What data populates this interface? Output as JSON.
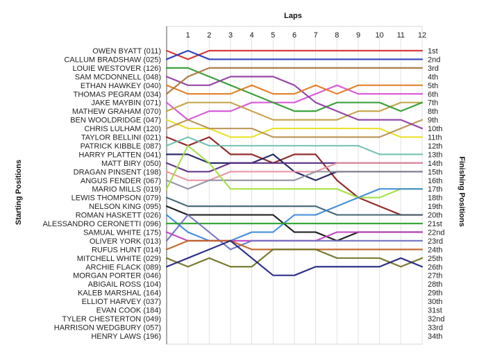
{
  "chart_data": {
    "type": "line",
    "title": "",
    "xlabel": "Laps",
    "ylabel_left": "Starting Positions",
    "ylabel_right": "Finishing Positions",
    "laps": [
      0,
      1,
      2,
      3,
      4,
      5,
      6,
      7,
      8,
      9,
      10,
      11,
      12
    ],
    "lap_tick_labels": [
      "1",
      "2",
      "3",
      "4",
      "5",
      "6",
      "7",
      "8",
      "9",
      "10",
      "11",
      "12"
    ],
    "position_range": [
      1,
      34
    ],
    "grid": true,
    "finishing_labels": [
      "1st",
      "2nd",
      "3rd",
      "4th",
      "5th",
      "6th",
      "7th",
      "8th",
      "9th",
      "10th",
      "11th",
      "12th",
      "13th",
      "14th",
      "15th",
      "16th",
      "17th",
      "18th",
      "19th",
      "20th",
      "21st",
      "22nd",
      "23rd",
      "24th",
      "25th",
      "26th",
      "27th",
      "28th",
      "29th",
      "30th",
      "31st",
      "32nd",
      "33rd",
      "34th"
    ],
    "series": [
      {
        "name": "OWEN BYATT (011)",
        "color": "#d42a2a",
        "positions": [
          1,
          2,
          1,
          1,
          1,
          1,
          1,
          1,
          1,
          1,
          1,
          1,
          1
        ]
      },
      {
        "name": "CALLUM BRADSHAW (025)",
        "color": "#2233bb",
        "positions": [
          2,
          1,
          2,
          2,
          2,
          2,
          2,
          2,
          2,
          2,
          2,
          2,
          2
        ]
      },
      {
        "name": "LOUIE WESTOVER (126)",
        "color": "#2e9a2e",
        "positions": [
          3,
          3,
          4,
          5,
          6,
          7,
          8,
          8,
          7,
          7,
          7,
          8,
          7
        ]
      },
      {
        "name": "SAM MCDONNELL (048)",
        "color": "#8e3a9e",
        "positions": [
          4,
          5,
          5,
          4,
          4,
          4,
          5,
          7,
          8,
          9,
          9,
          9,
          10
        ]
      },
      {
        "name": "ETHAN HAWKEY (040)",
        "color": "#e07a20",
        "positions": [
          5,
          6,
          6,
          6,
          5,
          6,
          6,
          5,
          6,
          5,
          5,
          5,
          5
        ]
      },
      {
        "name": "THOMAS PEGRAM (034)",
        "color": "#a6733a",
        "positions": [
          6,
          4,
          3,
          3,
          3,
          3,
          3,
          3,
          3,
          3,
          3,
          3,
          3
        ]
      }
    ],
    "starting_order": [
      "OWEN BYATT (011)",
      "CALLUM BRADSHAW (025)",
      "LOUIE WESTOVER (126)",
      "SAM MCDONNELL (048)",
      "ETHAN HAWKEY (040)",
      "THOMAS PEGRAM (034)",
      "JAKE MAYBIN (071)",
      "MATHEW GRAHAM (070)",
      "BEN WOOLDRIDGE (047)",
      "CHRIS LULHAM (120)",
      "TAYLOR BELLINI (021)",
      "PATRICK KIBBLE (087)",
      "HARRY PLATTEN (041)",
      "MATT BIRY (050)",
      "DRAGAN PINSENT (198)",
      "ANGUS FENDER (067)",
      "MARIO MILLS (019)",
      "LEWIS THOMPSON (079)",
      "NELSON KING (095)",
      "ROMAN HASKETT (026)",
      "ALESSANDRO CERONETTI (096)",
      "SAMUAL WHITE (175)",
      "OLIVER YORK (013)",
      "RUFUS HUNT (014)",
      "MITCHELL WHITE (029)",
      "ARCHIE FLACK (089)",
      "MORGAN PORTER (046)",
      "ABIGAIL ROSS (104)",
      "KALEB MARSHAL (164)",
      "ELLIOT HARVEY (037)",
      "EVAN COOK (184)",
      "TYLER CHESTERTON (049)",
      "HARRISON WEDGBURY (057)",
      "HENRY LAWS (196)"
    ],
    "other_series": [
      {
        "name": "JAKE MAYBIN (071)",
        "color": "#d64fd6",
        "positions": [
          7,
          9,
          8,
          8,
          7,
          7,
          7,
          6,
          5,
          6,
          6,
          6,
          6
        ]
      },
      {
        "name": "MATHEW GRAHAM (070)",
        "color": "#c2a040",
        "positions": [
          8,
          7,
          7,
          7,
          8,
          9,
          9,
          9,
          9,
          8,
          8,
          7,
          7
        ]
      },
      {
        "name": "BEN WOOLDRIDGE (047)",
        "color": "#e8e020",
        "positions": [
          9,
          10,
          10,
          11,
          11,
          10,
          10,
          10,
          10,
          10,
          10,
          11,
          11
        ]
      },
      {
        "name": "CHRIS LULHAM (120)",
        "color": "#b89050",
        "positions": [
          10,
          9,
          10,
          10,
          10,
          11,
          11,
          11,
          11,
          11,
          11,
          10,
          9
        ]
      },
      {
        "name": "TAYLOR BELLINI (021)",
        "color": "#8a1a1a",
        "positions": [
          11,
          12,
          11,
          13,
          13,
          14,
          13,
          13,
          16,
          18,
          19,
          20,
          20
        ]
      },
      {
        "name": "PATRICK KIBBLE (087)",
        "color": "#70c0b0",
        "positions": [
          12,
          11,
          12,
          12,
          12,
          12,
          12,
          12,
          12,
          12,
          13,
          13,
          13
        ]
      },
      {
        "name": "HARRY PLATTEN (041)",
        "color": "#1a1a60",
        "positions": [
          13,
          13,
          14,
          14,
          14,
          13,
          15,
          16,
          15,
          15,
          15,
          15,
          15
        ]
      },
      {
        "name": "MATT BIRY (050)",
        "color": "#5a2a80",
        "positions": [
          14,
          15,
          15,
          14,
          14,
          14,
          14,
          14,
          14,
          14,
          14,
          14,
          14
        ]
      },
      {
        "name": "DRAGAN PINSENT (198)",
        "color": "#e890a0",
        "positions": [
          15,
          16,
          16,
          15,
          15,
          15,
          15,
          15,
          14,
          14,
          14,
          14,
          14
        ]
      },
      {
        "name": "ANGUS FENDER (067)",
        "color": "#9090a0",
        "positions": [
          16,
          17,
          16,
          16,
          16,
          16,
          16,
          15,
          15,
          15,
          15,
          15,
          15
        ]
      },
      {
        "name": "MARIO MILLS (019)",
        "color": "#a0e040",
        "positions": [
          17,
          12,
          14,
          17,
          17,
          17,
          17,
          17,
          17,
          18,
          18,
          17,
          17
        ]
      },
      {
        "name": "LEWIS THOMPSON (079)",
        "color": "#406070",
        "positions": [
          18,
          19,
          19,
          19,
          19,
          19,
          19,
          19,
          20,
          20,
          20,
          20,
          20
        ]
      },
      {
        "name": "NELSON KING (095)",
        "color": "#101010",
        "positions": [
          19,
          20,
          20,
          20,
          20,
          20,
          22,
          22,
          23,
          22,
          22,
          22,
          22
        ]
      },
      {
        "name": "ROMAN HASKETT (026)",
        "color": "#3a88d8",
        "positions": [
          20,
          22,
          23,
          23,
          22,
          22,
          20,
          20,
          19,
          18,
          17,
          17,
          17
        ]
      },
      {
        "name": "ALESSANDRO CERONETTI (096)",
        "color": "#28a028",
        "positions": [
          21,
          21,
          21,
          21,
          21,
          21,
          21,
          21,
          21,
          21,
          21,
          21,
          21
        ]
      },
      {
        "name": "SAMUAL WHITE (175)",
        "color": "#c040c0",
        "positions": [
          22,
          23,
          23,
          23,
          23,
          23,
          23,
          23,
          22,
          22,
          22,
          22,
          22
        ]
      },
      {
        "name": "OLIVER YORK (013)",
        "color": "#7070c0",
        "positions": [
          23,
          20,
          22,
          24,
          23,
          23,
          23,
          23,
          23,
          23,
          23,
          23,
          23
        ]
      },
      {
        "name": "RUFUS HUNT (014)",
        "color": "#c06020",
        "positions": [
          24,
          23,
          23,
          23,
          24,
          24,
          24,
          24,
          24,
          24,
          24,
          24,
          24
        ]
      },
      {
        "name": "MITCHELL WHITE (029)",
        "color": "#707020",
        "positions": [
          25,
          26,
          25,
          26,
          26,
          24,
          24,
          24,
          25,
          25,
          25,
          26,
          25
        ]
      },
      {
        "name": "ARCHIE FLACK (089)",
        "color": "#202080",
        "positions": [
          26,
          25,
          24,
          23,
          25,
          27,
          27,
          26,
          26,
          26,
          26,
          25,
          26
        ]
      }
    ]
  }
}
